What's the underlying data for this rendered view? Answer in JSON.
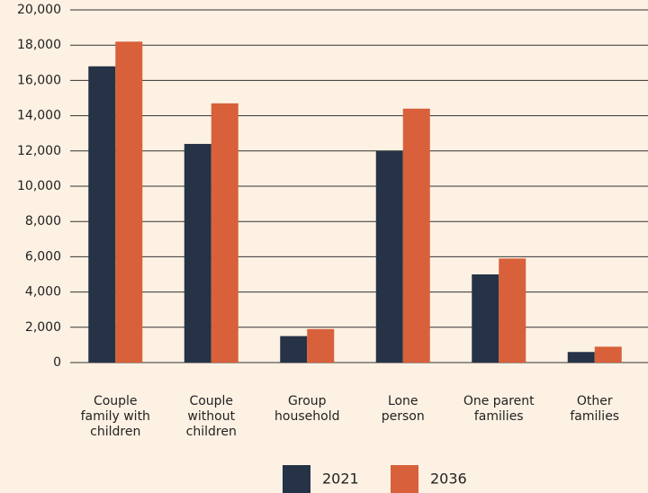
{
  "chart_data": {
    "type": "bar",
    "categories": [
      "Couple\nfamily with\nchildren",
      "Couple\nwithout\nchildren",
      "Group\nhousehold",
      "Lone\nperson",
      "One parent\nfamilies",
      "Other\nfamilies"
    ],
    "series": [
      {
        "name": "2021",
        "color": "#263246",
        "values": [
          16800,
          12400,
          1500,
          12000,
          5000,
          600
        ]
      },
      {
        "name": "2036",
        "color": "#d8603a",
        "values": [
          18200,
          14700,
          1900,
          14400,
          5900,
          900
        ]
      }
    ],
    "ylim": [
      0,
      20000
    ],
    "yticks": [
      0,
      {
        "value": 2000,
        "label": "2,000"
      },
      {
        "value": 4000,
        "label": "4,000"
      },
      {
        "value": 6000,
        "label": "6,000"
      },
      {
        "value": 8000,
        "label": "8,000"
      },
      {
        "value": 10000,
        "label": "10,000"
      },
      {
        "value": 12000,
        "label": "12,000"
      },
      {
        "value": 14000,
        "label": "14,000"
      },
      {
        "value": 16000,
        "label": "16,000"
      },
      {
        "value": 18000,
        "label": "18,000"
      },
      {
        "value": 20000,
        "label": "20,000"
      }
    ],
    "grid": true,
    "legend": "bottom"
  }
}
